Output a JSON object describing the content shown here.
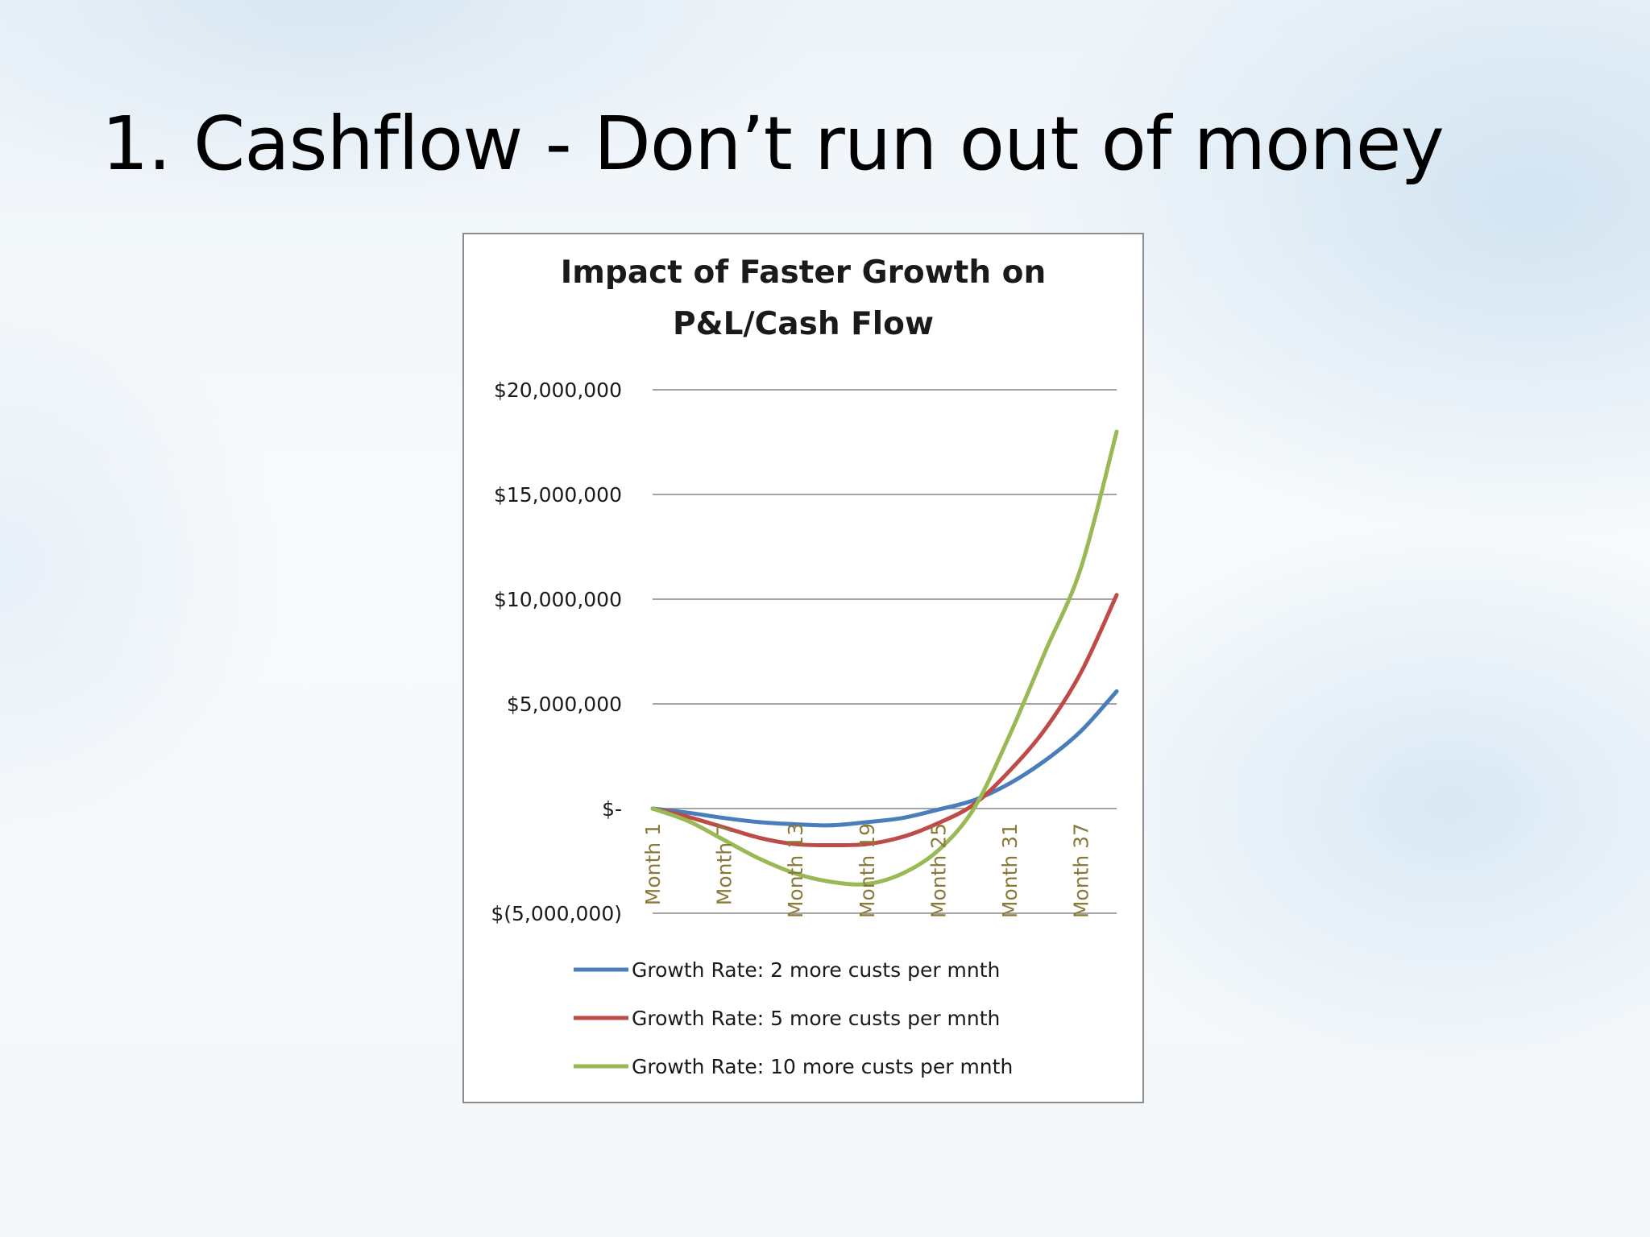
{
  "slide": {
    "title": "1. Cashflow - Don’t run out of money"
  },
  "chart_data": {
    "type": "line",
    "title_lines": [
      "Impact of Faster Growth on",
      "P&L/Cash Flow"
    ],
    "xlabel": "",
    "ylabel": "",
    "ylim": [
      -5000000,
      20000000
    ],
    "y_ticks": [
      {
        "value": 20000000,
        "label": "$20,000,000"
      },
      {
        "value": 15000000,
        "label": "$15,000,000"
      },
      {
        "value": 10000000,
        "label": "$10,000,000"
      },
      {
        "value": 5000000,
        "label": "$5,000,000"
      },
      {
        "value": 0,
        "label": "$-"
      },
      {
        "value": -5000000,
        "label": "$(5,000,000)"
      }
    ],
    "x_tick_labels": [
      "Month 1",
      "Month 7",
      "Month 13",
      "Month 19",
      "Month 25",
      "Month 31",
      "Month 37"
    ],
    "x_tick_months": [
      1,
      7,
      13,
      19,
      25,
      31,
      37
    ],
    "x_range": [
      1,
      40
    ],
    "grid": true,
    "legend_position": "bottom",
    "x": [
      1,
      4,
      7,
      10,
      13,
      16,
      19,
      22,
      25,
      28,
      31,
      34,
      37,
      40
    ],
    "series": [
      {
        "name": "Growth Rate: 2 more custs per mnth",
        "color": "#4a7ebb",
        "values": [
          0,
          -200000,
          -450000,
          -650000,
          -750000,
          -800000,
          -650000,
          -450000,
          -50000,
          400000,
          1200000,
          2300000,
          3700000,
          5600000
        ]
      },
      {
        "name": "Growth Rate: 5 more custs per mnth",
        "color": "#be4b48",
        "values": [
          0,
          -400000,
          -900000,
          -1400000,
          -1700000,
          -1750000,
          -1700000,
          -1350000,
          -700000,
          200000,
          1800000,
          3800000,
          6500000,
          10200000
        ]
      },
      {
        "name": "Growth Rate: 10 more custs per mnth",
        "color": "#98b954",
        "values": [
          0,
          -600000,
          -1500000,
          -2400000,
          -3100000,
          -3500000,
          -3600000,
          -3100000,
          -2000000,
          0,
          3500000,
          7500000,
          11500000,
          18000000
        ]
      }
    ]
  }
}
